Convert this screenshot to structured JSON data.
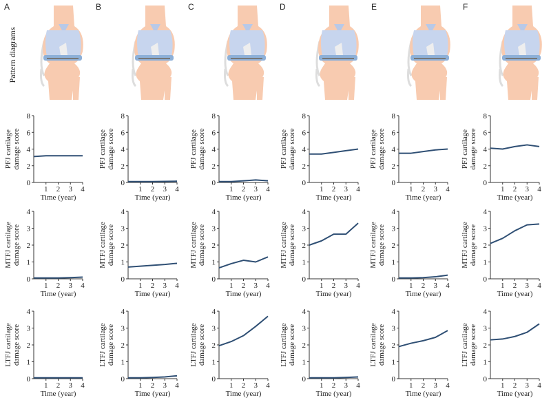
{
  "row_label": "Pattern diagrams",
  "x_tick_labels": [
    "1",
    "2",
    "3",
    "4"
  ],
  "xlabel": "Time (year)",
  "line_color": "#2f4f74",
  "chart_data": [
    {
      "panel": "A",
      "type": "line",
      "x": [
        0,
        1,
        2,
        3,
        4
      ],
      "charts": [
        {
          "ylabel": [
            "PFJ cartilage",
            "damage score"
          ],
          "ylim": [
            0,
            8
          ],
          "yticks": [
            "0",
            "2",
            "4",
            "6",
            "8"
          ],
          "values": [
            3.1,
            3.2,
            3.2,
            3.2,
            3.2
          ]
        },
        {
          "ylabel": [
            "MTFJ cartilage",
            "damage score"
          ],
          "ylim": [
            0,
            4
          ],
          "yticks": [
            "0",
            "1",
            "2",
            "3",
            "4"
          ],
          "values": [
            0.05,
            0.05,
            0.05,
            0.07,
            0.1
          ]
        },
        {
          "ylabel": [
            "LTFJ cartilage",
            "damage score"
          ],
          "ylim": [
            0,
            4
          ],
          "yticks": [
            "0",
            "1",
            "2",
            "3",
            "4"
          ],
          "values": [
            0.05,
            0.05,
            0.05,
            0.05,
            0.05
          ]
        }
      ]
    },
    {
      "panel": "B",
      "type": "line",
      "x": [
        0,
        1,
        2,
        3,
        4
      ],
      "charts": [
        {
          "ylabel": [
            "PFJ cartilage",
            "damage score"
          ],
          "ylim": [
            0,
            8
          ],
          "yticks": [
            "0",
            "2",
            "4",
            "6",
            "8"
          ],
          "values": [
            0.1,
            0.1,
            0.1,
            0.12,
            0.15
          ]
        },
        {
          "ylabel": [
            "MTFJ cartilage",
            "damage score"
          ],
          "ylim": [
            0,
            4
          ],
          "yticks": [
            "0",
            "1",
            "2",
            "3",
            "4"
          ],
          "values": [
            0.7,
            0.75,
            0.8,
            0.85,
            0.92
          ]
        },
        {
          "ylabel": [
            "LTFJ cartilage",
            "damage score"
          ],
          "ylim": [
            0,
            4
          ],
          "yticks": [
            "0",
            "1",
            "2",
            "3",
            "4"
          ],
          "values": [
            0.05,
            0.05,
            0.07,
            0.1,
            0.17
          ]
        }
      ]
    },
    {
      "panel": "C",
      "type": "line",
      "x": [
        0,
        1,
        2,
        3,
        4
      ],
      "charts": [
        {
          "ylabel": [
            "PFJ cartilage",
            "damage score"
          ],
          "ylim": [
            0,
            8
          ],
          "yticks": [
            "0",
            "2",
            "4",
            "6",
            "8"
          ],
          "values": [
            0.1,
            0.1,
            0.2,
            0.3,
            0.2
          ]
        },
        {
          "ylabel": [
            "MTFJ cartilage",
            "damage score"
          ],
          "ylim": [
            0,
            4
          ],
          "yticks": [
            "0",
            "1",
            "2",
            "3",
            "4"
          ],
          "values": [
            0.65,
            0.9,
            1.1,
            1.0,
            1.3
          ]
        },
        {
          "ylabel": [
            "LTFJ cartilage",
            "damage score"
          ],
          "ylim": [
            0,
            4
          ],
          "yticks": [
            "0",
            "1",
            "2",
            "3",
            "4"
          ],
          "values": [
            1.95,
            2.2,
            2.55,
            3.1,
            3.7
          ]
        }
      ]
    },
    {
      "panel": "D",
      "type": "line",
      "x": [
        0,
        1,
        2,
        3,
        4
      ],
      "charts": [
        {
          "ylabel": [
            "PFJ cartilage",
            "damage score"
          ],
          "ylim": [
            0,
            8
          ],
          "yticks": [
            "0",
            "2",
            "4",
            "6",
            "8"
          ],
          "values": [
            3.4,
            3.4,
            3.6,
            3.8,
            4.0
          ]
        },
        {
          "ylabel": [
            "MTFJ cartilage",
            "damage score"
          ],
          "ylim": [
            0,
            4
          ],
          "yticks": [
            "0",
            "1",
            "2",
            "3",
            "4"
          ],
          "values": [
            2.0,
            2.25,
            2.65,
            2.65,
            3.3
          ]
        },
        {
          "ylabel": [
            "LTFJ cartilage",
            "damage score"
          ],
          "ylim": [
            0,
            4
          ],
          "yticks": [
            "0",
            "1",
            "2",
            "3",
            "4"
          ],
          "values": [
            0.05,
            0.05,
            0.05,
            0.07,
            0.1
          ]
        }
      ]
    },
    {
      "panel": "E",
      "type": "line",
      "x": [
        0,
        1,
        2,
        3,
        4
      ],
      "charts": [
        {
          "ylabel": [
            "PFJ cartilage",
            "damage score"
          ],
          "ylim": [
            0,
            8
          ],
          "yticks": [
            "0",
            "2",
            "4",
            "6",
            "8"
          ],
          "values": [
            3.5,
            3.5,
            3.7,
            3.9,
            4.0
          ]
        },
        {
          "ylabel": [
            "MTFJ cartilage",
            "damage score"
          ],
          "ylim": [
            0,
            4
          ],
          "yticks": [
            "0",
            "1",
            "2",
            "3",
            "4"
          ],
          "values": [
            0.05,
            0.05,
            0.07,
            0.12,
            0.22
          ]
        },
        {
          "ylabel": [
            "LTFJ cartilage",
            "damage score"
          ],
          "ylim": [
            0,
            4
          ],
          "yticks": [
            "0",
            "1",
            "2",
            "3",
            "4"
          ],
          "values": [
            1.9,
            2.1,
            2.25,
            2.45,
            2.85
          ]
        }
      ]
    },
    {
      "panel": "F",
      "type": "line",
      "x": [
        0,
        1,
        2,
        3,
        4
      ],
      "charts": [
        {
          "ylabel": [
            "PFJ cartilage",
            "damage score"
          ],
          "ylim": [
            0,
            8
          ],
          "yticks": [
            "0",
            "2",
            "4",
            "6",
            "8"
          ],
          "values": [
            4.1,
            4.0,
            4.3,
            4.5,
            4.3
          ]
        },
        {
          "ylabel": [
            "MTFJ cartilage",
            "damage score"
          ],
          "ylim": [
            0,
            4
          ],
          "yticks": [
            "0",
            "1",
            "2",
            "3",
            "4"
          ],
          "values": [
            2.1,
            2.4,
            2.85,
            3.2,
            3.25
          ]
        },
        {
          "ylabel": [
            "LTFJ cartilage",
            "damage score"
          ],
          "ylim": [
            0,
            4
          ],
          "yticks": [
            "0",
            "1",
            "2",
            "3",
            "4"
          ],
          "values": [
            2.3,
            2.35,
            2.5,
            2.75,
            3.25
          ]
        }
      ]
    }
  ]
}
